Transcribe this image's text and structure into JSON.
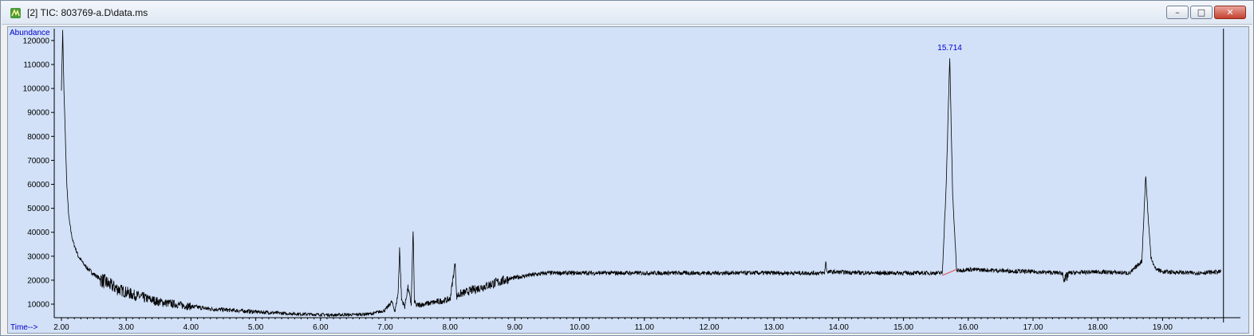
{
  "window": {
    "title": "[2] TIC: 803769-a.D\\data.ms",
    "controls": {
      "minimize": "–",
      "maximize": "□",
      "close": "✕"
    }
  },
  "chart_data": {
    "type": "line",
    "title": "",
    "ylabel": "Abundance",
    "xlabel": "Time-->",
    "xlim": [
      2.0,
      19.9
    ],
    "ylim": [
      3000,
      124000
    ],
    "x_ticks": [
      2.0,
      3.0,
      4.0,
      5.0,
      6.0,
      7.0,
      8.0,
      9.0,
      10.0,
      11.0,
      12.0,
      13.0,
      14.0,
      15.0,
      16.0,
      17.0,
      18.0,
      19.0
    ],
    "x_tick_labels": [
      "2.00",
      "3.00",
      "4.00",
      "5.00",
      "6.00",
      "7.00",
      "8.00",
      "9.00",
      "10.00",
      "11.00",
      "12.00",
      "13.00",
      "14.00",
      "15.00",
      "16.00",
      "17.00",
      "18.00",
      "19.00"
    ],
    "y_ticks": [
      10000,
      20000,
      30000,
      40000,
      50000,
      60000,
      70000,
      80000,
      90000,
      100000,
      110000,
      120000
    ],
    "y_tick_labels": [
      "10000",
      "20000",
      "30000",
      "40000",
      "50000",
      "60000",
      "70000",
      "80000",
      "90000",
      "100000",
      "110000",
      "120000"
    ],
    "grid": false,
    "series": [
      {
        "color": "#000000",
        "x": [
          2.0,
          2.02,
          2.04,
          2.06,
          2.08,
          2.1,
          2.12,
          2.15,
          2.18,
          2.22,
          2.26,
          2.3,
          2.35,
          2.4,
          2.5,
          2.6,
          2.75,
          2.9,
          3.1,
          3.3,
          3.5,
          3.75,
          4.0,
          4.3,
          4.6,
          5.0,
          5.4,
          5.8,
          6.2,
          6.5,
          6.8,
          7.0,
          7.1,
          7.15,
          7.2,
          7.22,
          7.25,
          7.3,
          7.35,
          7.4,
          7.43,
          7.45,
          7.48,
          7.6,
          7.8,
          8.0,
          8.08,
          8.1,
          8.13,
          8.3,
          8.6,
          8.9,
          9.2,
          9.5,
          10.0,
          11.0,
          12.0,
          13.0,
          13.78,
          13.8,
          13.82,
          14.5,
          15.0,
          15.4,
          15.6,
          15.66,
          15.714,
          15.76,
          15.82,
          16.0,
          16.5,
          17.0,
          17.45,
          17.5,
          17.55,
          18.0,
          18.5,
          18.68,
          18.74,
          18.78,
          18.82,
          18.88,
          19.0,
          19.5,
          19.9
        ],
        "y": [
          100000,
          124000,
          98000,
          80000,
          62000,
          52000,
          45000,
          40000,
          36000,
          33000,
          30000,
          28500,
          26500,
          25000,
          22500,
          20500,
          18000,
          16000,
          14000,
          12500,
          11000,
          10000,
          9000,
          8000,
          7500,
          6800,
          6200,
          5800,
          5500,
          5600,
          6000,
          7500,
          11000,
          7000,
          15000,
          34000,
          12000,
          9000,
          17000,
          10000,
          41500,
          11000,
          9500,
          10000,
          11000,
          12000,
          27500,
          13000,
          14000,
          15500,
          18000,
          20500,
          22000,
          23000,
          23000,
          23000,
          23000,
          23000,
          23000,
          27500,
          23500,
          23000,
          23000,
          23000,
          23000,
          60000,
          113000,
          55000,
          24000,
          24500,
          24000,
          23500,
          23000,
          20000,
          23000,
          23500,
          23000,
          28000,
          64000,
          45000,
          30000,
          25000,
          23500,
          23000,
          23500
        ]
      }
    ],
    "peak_labels": [
      {
        "x": 15.714,
        "y": 114000,
        "label": "15.714"
      }
    ],
    "baseline_segments": [
      {
        "x1": 15.6,
        "y1": 22000,
        "x2": 15.82,
        "y2": 24500,
        "color": "#e05050"
      }
    ],
    "cursor_x": 19.94
  },
  "colors": {
    "plot_bg": "#d2e1f8",
    "axis": "#000000",
    "tick_text": "#000000",
    "label_text": "#0000c8",
    "peak_label": "#0000d0"
  }
}
